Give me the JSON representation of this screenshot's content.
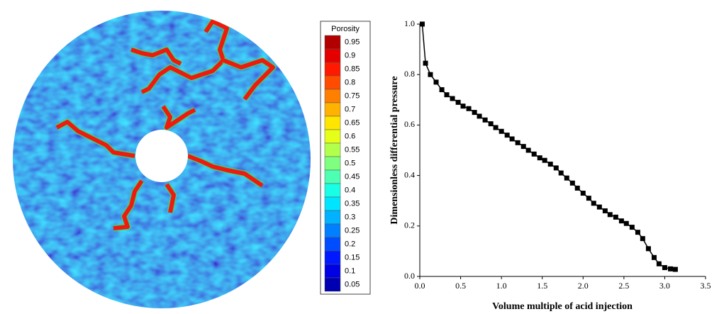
{
  "porosity_map": {
    "colorbar_title": "Porosity",
    "colorbar_ticks": [
      0.95,
      0.9,
      0.85,
      0.8,
      0.75,
      0.7,
      0.65,
      0.6,
      0.55,
      0.5,
      0.45,
      0.4,
      0.35,
      0.3,
      0.25,
      0.2,
      0.15,
      0.1,
      0.05
    ]
  },
  "chart_data": {
    "type": "line",
    "xlabel": "Volume multiple of acid injection",
    "ylabel": "Dimensionless differential pressure",
    "xlim": [
      0,
      3.5
    ],
    "xticks": [
      {
        "value": 0,
        "label": "0.0"
      },
      0.5,
      {
        "value": 1,
        "label": "1.0"
      },
      1.5,
      {
        "value": 2,
        "label": "2.0"
      },
      2.5,
      {
        "value": 3,
        "label": "3.0"
      },
      3.5
    ],
    "ylim": [
      0,
      1
    ],
    "yticks": [
      {
        "value": 0,
        "label": "0.0"
      },
      0.2,
      0.4,
      0.6,
      0.8,
      {
        "value": 1,
        "label": "1.0"
      }
    ],
    "series": [
      {
        "color": "#000000",
        "x": [
          0.03,
          0.07,
          0.13,
          0.2,
          0.27,
          0.33,
          0.4,
          0.47,
          0.53,
          0.6,
          0.67,
          0.73,
          0.8,
          0.87,
          0.93,
          1.0,
          1.07,
          1.13,
          1.2,
          1.27,
          1.33,
          1.4,
          1.47,
          1.53,
          1.6,
          1.67,
          1.73,
          1.8,
          1.87,
          1.93,
          2.0,
          2.07,
          2.13,
          2.2,
          2.27,
          2.33,
          2.4,
          2.47,
          2.53,
          2.6,
          2.67,
          2.73,
          2.8,
          2.87,
          2.93,
          3.0,
          3.07,
          3.13
        ],
        "values": [
          1.0,
          0.845,
          0.8,
          0.77,
          0.74,
          0.72,
          0.705,
          0.69,
          0.675,
          0.665,
          0.65,
          0.635,
          0.62,
          0.605,
          0.59,
          0.575,
          0.56,
          0.545,
          0.53,
          0.515,
          0.5,
          0.485,
          0.47,
          0.46,
          0.445,
          0.43,
          0.41,
          0.39,
          0.37,
          0.35,
          0.33,
          0.31,
          0.29,
          0.275,
          0.26,
          0.245,
          0.235,
          0.22,
          0.21,
          0.195,
          0.175,
          0.15,
          0.11,
          0.075,
          0.05,
          0.035,
          0.03,
          0.028
        ]
      }
    ]
  }
}
